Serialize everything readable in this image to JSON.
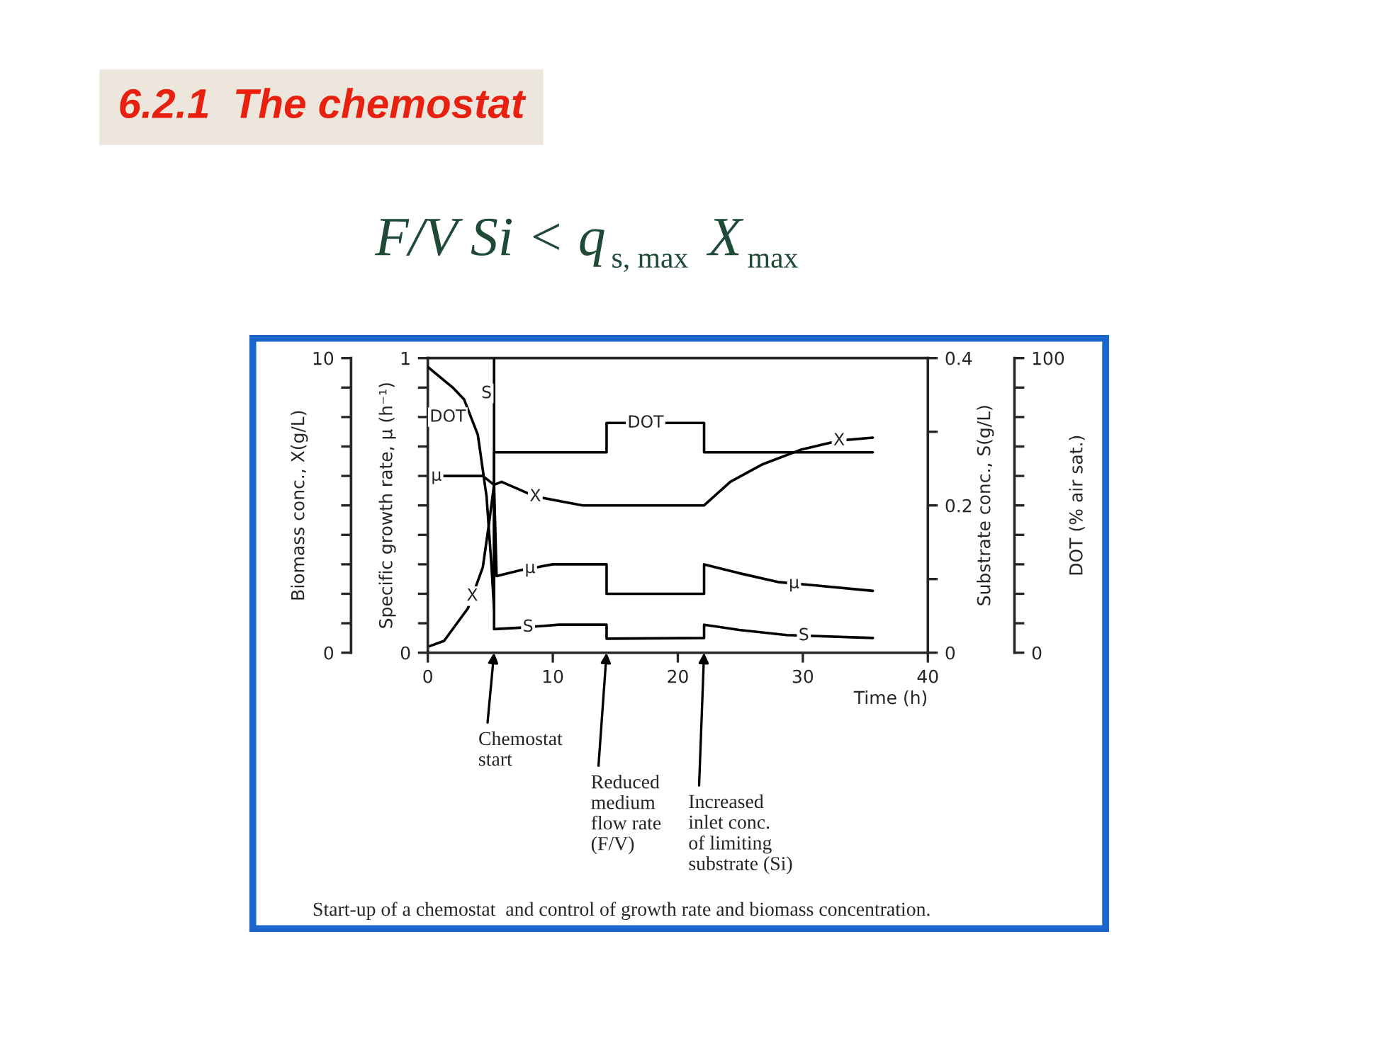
{
  "chart_data": [
    {
      "type": "line",
      "title": "6.2.1  The chemostat",
      "subtitle": "F/V Si < q$_{s, max}$ X$_{max}$",
      "xlabel": "Time (h)",
      "ylabel": "Biomass conc., X(g/L)",
      "y2label": "Specific growth rate, µ (h⁻¹)",
      "xlim": [
        0,
        40
      ],
      "xticks": [
        0,
        10,
        20,
        30,
        40
      ],
      "ylim": [
        0,
        10
      ],
      "yticks": [
        0,
        {
          "value": 1,
          "label": null
        },
        {
          "value": 2,
          "label": null
        },
        {
          "value": 3,
          "label": null
        },
        {
          "value": 4,
          "label": null
        },
        {
          "value": 5,
          "label": null
        },
        {
          "value": 6,
          "label": null
        },
        {
          "value": 7,
          "label": null
        },
        {
          "value": 8,
          "label": null
        },
        {
          "value": 9,
          "label": null
        },
        10
      ],
      "y2lim": [
        0,
        1
      ],
      "y2ticks": [
        0,
        {
          "value": 0.1,
          "label": null
        },
        {
          "value": 0.2,
          "label": null
        },
        {
          "value": 0.3,
          "label": null
        },
        {
          "value": 0.4,
          "label": null
        },
        {
          "value": 0.5,
          "label": null
        },
        {
          "value": 0.6,
          "label": null
        },
        {
          "value": 0.7,
          "label": null
        },
        {
          "value": 0.8,
          "label": null
        },
        {
          "value": 0.9,
          "label": null
        },
        1
      ],
      "grid": false,
      "legend": false,
      "marker": "none",
      "line_style": "solid",
      "series": [
        {
          "name": "X",
          "color": "#000000",
          "x": [
            0,
            1.3,
            3.2,
            4.4,
            4.9,
            5.3,
            5.9,
            8.6,
            12.4,
            22.1,
            24.2,
            26.8,
            29.9,
            32.9,
            35.6
          ],
          "values": [
            0.2,
            0.4,
            1.5,
            2.9,
            4.4,
            5.7,
            5.8,
            5.3,
            5.0,
            5.0,
            5.8,
            6.4,
            6.9,
            7.2,
            7.3
          ]
        },
        {
          "name": "µ",
          "color": "#000000",
          "axis": "y2",
          "x": [
            0.3,
            2.9,
            4.4,
            5.3,
            5.5,
            7.4,
            10,
            14.3,
            14.3,
            22.1,
            22.1,
            24.9,
            28,
            30.6,
            35.6
          ],
          "values": [
            0.6,
            0.6,
            0.6,
            0.57,
            0.26,
            0.28,
            0.3,
            0.3,
            0.2,
            0.2,
            0.3,
            0.27,
            0.24,
            0.23,
            0.21
          ]
        }
      ],
      "annotations": [
        "Chemostat\nstart",
        "Reduced\nmedium\nflow rate\n(F/V)",
        "Increased\ninlet conc.\nof limiting\nsubstrate (Si)",
        "Start-up of a chemostat  and control of growth rate and biomass concentration."
      ]
    },
    {
      "type": "line",
      "ylabel": "Substrate conc., S(g/L)",
      "y2label": "DOT (% air sat.)",
      "xlim": [
        0,
        40
      ],
      "tick_labels": "y",
      "ylim": [
        0,
        0.4
      ],
      "yticks": [
        0,
        {
          "value": 0.1,
          "label": null
        },
        0.2,
        {
          "value": 0.3,
          "label": null
        },
        0.4
      ],
      "y2lim": [
        0,
        100
      ],
      "y2ticks": [
        0,
        {
          "value": 10,
          "label": null
        },
        {
          "value": 20,
          "label": null
        },
        {
          "value": 30,
          "label": null
        },
        {
          "value": 40,
          "label": null
        },
        {
          "value": 50,
          "label": null
        },
        {
          "value": 60,
          "label": null
        },
        {
          "value": 70,
          "label": null
        },
        {
          "value": 80,
          "label": null
        },
        {
          "value": 90,
          "label": null
        },
        100
      ],
      "grid": false,
      "legend": false,
      "marker": "none",
      "line_style": "solid",
      "series": [
        {
          "name": "S",
          "color": "#000000",
          "x": [
            5.3,
            5.3,
            7.4,
            10.5,
            14.3,
            14.3,
            22.1,
            22.1,
            24.9,
            28.7,
            35.6
          ],
          "values": [
            0.4,
            0.032,
            0.034,
            0.038,
            0.038,
            0.019,
            0.02,
            0.038,
            0.031,
            0.024,
            0.02
          ]
        },
        {
          "name": "DOT",
          "color": "#000000",
          "axis": "y2",
          "x": [
            0,
            2,
            2.9,
            4,
            4.7,
            5.1,
            5.3,
            5.3,
            14.3,
            14.3,
            22.1,
            22.1,
            35.6
          ],
          "values": [
            97,
            90,
            86,
            74,
            53,
            29,
            15,
            68,
            68,
            78,
            78,
            68,
            68
          ]
        }
      ]
    }
  ]
}
